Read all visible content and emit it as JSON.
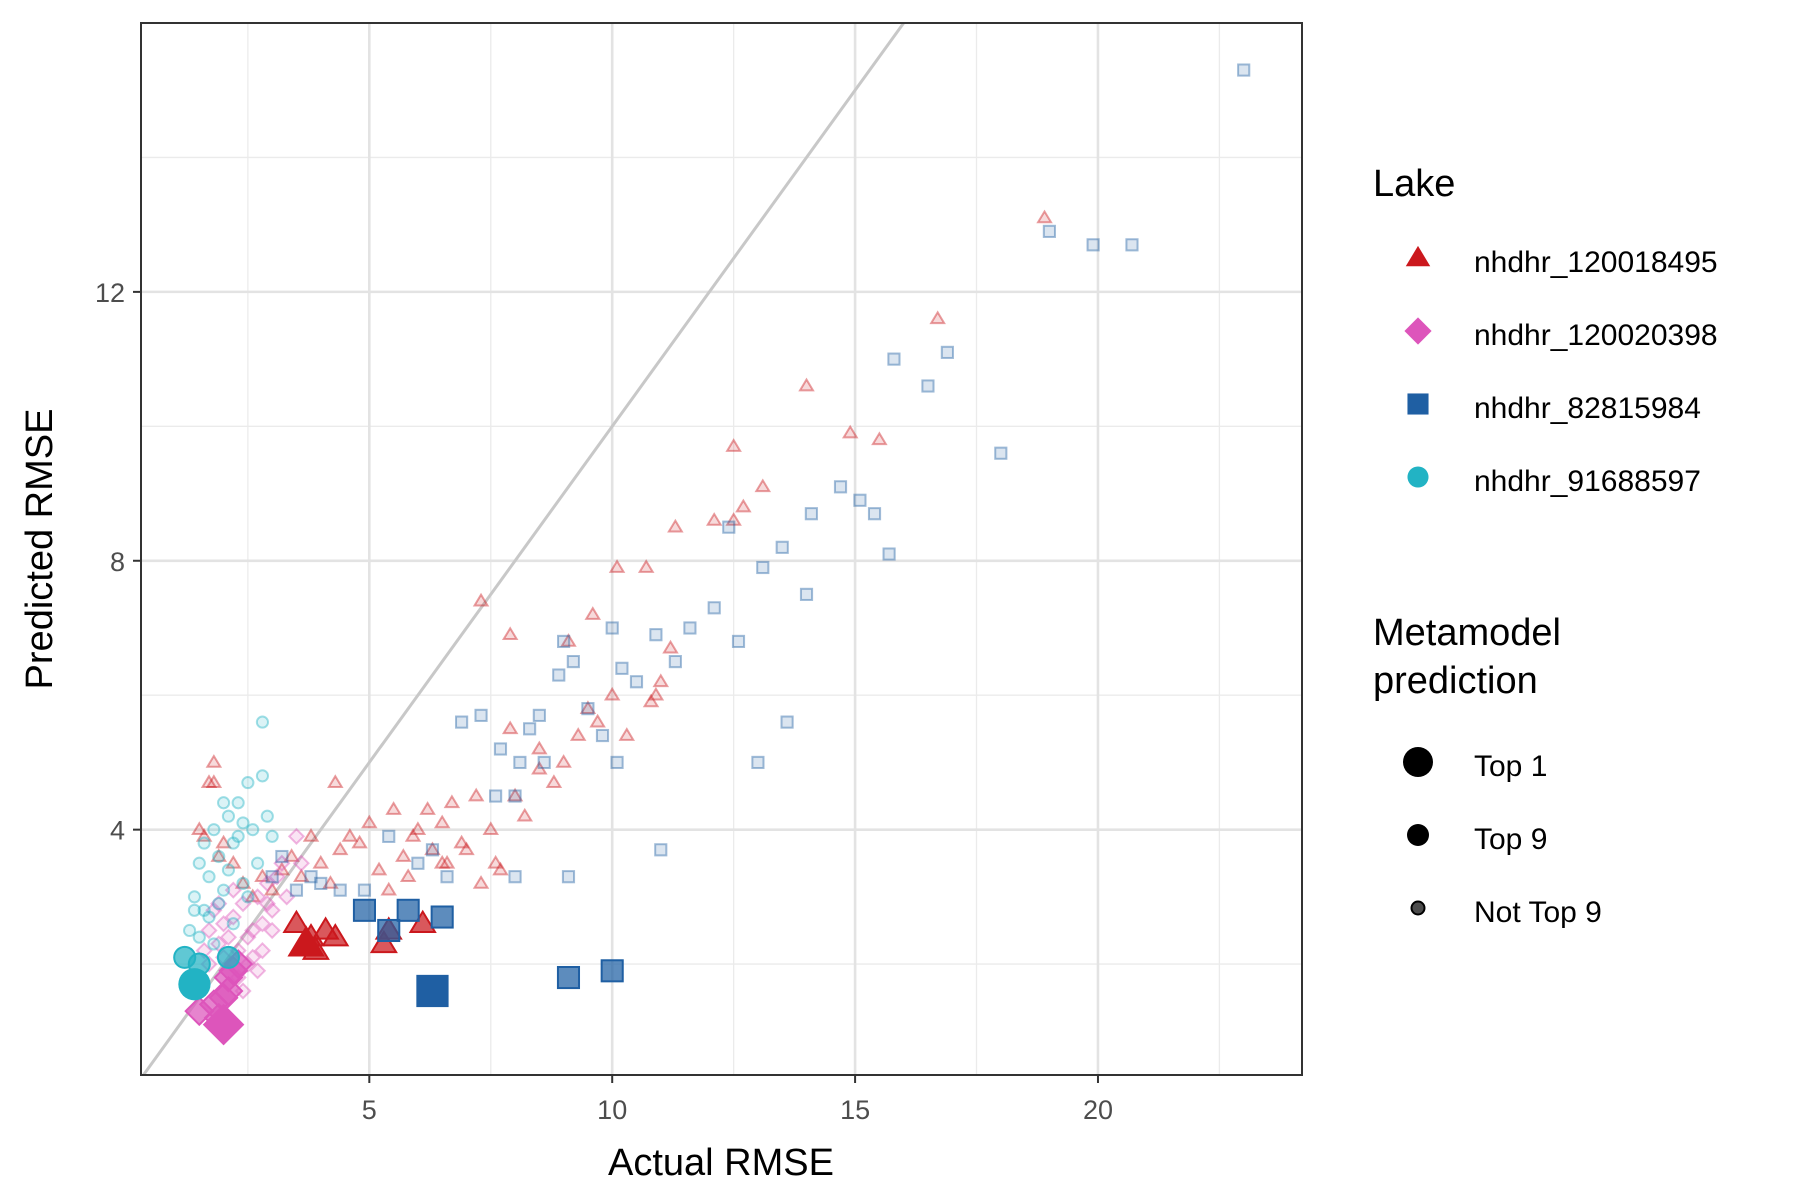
{
  "chart_data": {
    "type": "scatter",
    "xlabel": "Actual RMSE",
    "ylabel": "Predicted RMSE",
    "xlim": [
      0.3,
      24.2
    ],
    "ylim": [
      0.35,
      16.0
    ],
    "x_ticks": [
      5,
      10,
      15,
      20
    ],
    "y_ticks": [
      4,
      8,
      12
    ],
    "grid": true,
    "reference_line": "y = x",
    "colors": {
      "nhdhr_120018495": "#cb181d",
      "nhdhr_120020398": "#dd55bb",
      "nhdhr_82815984": "#1f5fa3",
      "nhdhr_91688597": "#22b3c4",
      "reference_line": "#c8c8c8"
    },
    "legend": {
      "placement": "right",
      "lake_title": "Lake",
      "lakes": [
        {
          "name": "nhdhr_120018495",
          "shape": "triangle"
        },
        {
          "name": "nhdhr_120020398",
          "shape": "diamond"
        },
        {
          "name": "nhdhr_82815984",
          "shape": "square"
        },
        {
          "name": "nhdhr_91688597",
          "shape": "circle"
        }
      ],
      "size_title_lines": [
        "Metamodel",
        "prediction"
      ],
      "sizes": [
        "Top 1",
        "Top 9",
        "Not Top 9"
      ]
    },
    "series": [
      {
        "name": "nhdhr_120018495",
        "top1": [
          [
            3.7,
            2.3
          ]
        ],
        "top9": [
          [
            3.5,
            2.6
          ],
          [
            3.8,
            2.4
          ],
          [
            4.1,
            2.5
          ],
          [
            4.3,
            2.4
          ],
          [
            5.3,
            2.3
          ],
          [
            5.4,
            2.5
          ],
          [
            6.1,
            2.6
          ],
          [
            3.9,
            2.2
          ]
        ],
        "rest": [
          [
            1.5,
            4.0
          ],
          [
            1.6,
            3.9
          ],
          [
            1.7,
            4.7
          ],
          [
            1.8,
            4.7
          ],
          [
            1.8,
            5.0
          ],
          [
            1.9,
            3.6
          ],
          [
            2.0,
            3.8
          ],
          [
            2.2,
            3.5
          ],
          [
            2.4,
            3.2
          ],
          [
            2.6,
            3.0
          ],
          [
            2.8,
            3.3
          ],
          [
            3.0,
            3.1
          ],
          [
            3.2,
            3.4
          ],
          [
            3.4,
            3.6
          ],
          [
            3.6,
            3.3
          ],
          [
            3.8,
            3.9
          ],
          [
            4.0,
            3.5
          ],
          [
            4.2,
            3.2
          ],
          [
            4.3,
            4.7
          ],
          [
            4.4,
            3.7
          ],
          [
            4.6,
            3.9
          ],
          [
            4.8,
            3.8
          ],
          [
            5.0,
            4.1
          ],
          [
            5.2,
            3.4
          ],
          [
            5.4,
            3.1
          ],
          [
            5.5,
            4.3
          ],
          [
            5.7,
            3.6
          ],
          [
            5.9,
            3.9
          ],
          [
            6.0,
            4.0
          ],
          [
            6.2,
            4.3
          ],
          [
            6.3,
            3.7
          ],
          [
            6.5,
            4.1
          ],
          [
            6.7,
            4.4
          ],
          [
            6.9,
            3.8
          ],
          [
            7.2,
            4.5
          ],
          [
            7.3,
            3.2
          ],
          [
            7.5,
            4.0
          ],
          [
            7.7,
            3.4
          ],
          [
            8.0,
            4.5
          ],
          [
            8.2,
            4.2
          ],
          [
            8.5,
            4.9
          ],
          [
            8.8,
            4.7
          ],
          [
            9.0,
            5.0
          ],
          [
            9.3,
            5.4
          ],
          [
            9.5,
            5.8
          ],
          [
            9.7,
            5.6
          ],
          [
            10.0,
            6.0
          ],
          [
            10.3,
            5.4
          ],
          [
            10.8,
            5.9
          ],
          [
            10.9,
            6.0
          ],
          [
            11.0,
            6.2
          ],
          [
            11.2,
            6.7
          ],
          [
            7.3,
            7.4
          ],
          [
            7.9,
            6.9
          ],
          [
            9.1,
            6.8
          ],
          [
            9.6,
            7.2
          ],
          [
            10.1,
            7.9
          ],
          [
            10.7,
            7.9
          ],
          [
            11.3,
            8.5
          ],
          [
            12.1,
            8.6
          ],
          [
            12.5,
            8.6
          ],
          [
            12.7,
            8.8
          ],
          [
            13.1,
            9.1
          ],
          [
            12.5,
            9.7
          ],
          [
            14.0,
            10.6
          ],
          [
            14.9,
            9.9
          ],
          [
            15.5,
            9.8
          ],
          [
            16.7,
            11.6
          ],
          [
            18.9,
            13.1
          ],
          [
            6.6,
            3.5
          ],
          [
            7.6,
            3.5
          ],
          [
            8.5,
            5.2
          ],
          [
            6.5,
            3.5
          ],
          [
            5.8,
            3.3
          ],
          [
            7.0,
            3.7
          ],
          [
            7.9,
            5.5
          ]
        ]
      },
      {
        "name": "nhdhr_120020398",
        "top1": [
          [
            2.0,
            1.1
          ]
        ],
        "top9": [
          [
            1.5,
            1.3
          ],
          [
            1.8,
            1.4
          ],
          [
            2.0,
            1.5
          ],
          [
            2.1,
            1.6
          ],
          [
            2.2,
            1.9
          ],
          [
            2.3,
            2.0
          ],
          [
            1.9,
            1.2
          ],
          [
            2.1,
            1.8
          ]
        ],
        "rest": [
          [
            1.6,
            2.2
          ],
          [
            1.7,
            2.5
          ],
          [
            1.8,
            2.8
          ],
          [
            1.9,
            2.3
          ],
          [
            2.0,
            2.6
          ],
          [
            2.1,
            2.4
          ],
          [
            2.2,
            2.7
          ],
          [
            2.3,
            2.2
          ],
          [
            2.4,
            2.9
          ],
          [
            2.5,
            2.4
          ],
          [
            2.6,
            2.1
          ],
          [
            2.7,
            3.0
          ],
          [
            2.8,
            2.6
          ],
          [
            2.9,
            3.2
          ],
          [
            3.0,
            2.8
          ],
          [
            3.1,
            3.3
          ],
          [
            3.2,
            3.5
          ],
          [
            3.3,
            3.0
          ],
          [
            3.5,
            3.9
          ],
          [
            3.6,
            3.5
          ],
          [
            2.2,
            3.1
          ],
          [
            1.9,
            2.9
          ],
          [
            2.5,
            2.0
          ],
          [
            2.3,
            1.8
          ],
          [
            2.6,
            2.5
          ],
          [
            2.8,
            2.2
          ],
          [
            3.0,
            2.5
          ],
          [
            2.4,
            1.6
          ],
          [
            2.7,
            1.9
          ],
          [
            1.7,
            2.0
          ],
          [
            2.0,
            2.1
          ],
          [
            2.9,
            2.9
          ]
        ]
      },
      {
        "name": "nhdhr_82815984",
        "top1": [
          [
            6.3,
            1.6
          ]
        ],
        "top9": [
          [
            4.9,
            2.8
          ],
          [
            5.4,
            2.5
          ],
          [
            5.8,
            2.8
          ],
          [
            6.5,
            2.7
          ],
          [
            9.1,
            1.8
          ],
          [
            10.0,
            1.9
          ]
        ],
        "rest": [
          [
            3.0,
            3.3
          ],
          [
            3.2,
            3.6
          ],
          [
            3.5,
            3.1
          ],
          [
            3.8,
            3.3
          ],
          [
            4.0,
            3.2
          ],
          [
            4.4,
            3.1
          ],
          [
            4.9,
            3.1
          ],
          [
            5.4,
            3.9
          ],
          [
            6.0,
            3.5
          ],
          [
            6.3,
            3.7
          ],
          [
            6.6,
            3.3
          ],
          [
            6.9,
            5.6
          ],
          [
            7.3,
            5.7
          ],
          [
            7.7,
            5.2
          ],
          [
            8.1,
            5.0
          ],
          [
            8.3,
            5.5
          ],
          [
            8.6,
            5.0
          ],
          [
            8.9,
            6.3
          ],
          [
            9.2,
            6.5
          ],
          [
            9.5,
            5.8
          ],
          [
            9.8,
            5.4
          ],
          [
            10.2,
            6.4
          ],
          [
            10.5,
            6.2
          ],
          [
            10.9,
            6.9
          ],
          [
            11.3,
            6.5
          ],
          [
            11.6,
            7.0
          ],
          [
            12.1,
            7.3
          ],
          [
            12.6,
            6.8
          ],
          [
            13.1,
            7.9
          ],
          [
            13.5,
            8.2
          ],
          [
            14.1,
            8.7
          ],
          [
            14.7,
            9.1
          ],
          [
            15.1,
            8.9
          ],
          [
            15.4,
            8.7
          ],
          [
            15.7,
            8.1
          ],
          [
            16.5,
            10.6
          ],
          [
            16.9,
            11.1
          ],
          [
            18.0,
            9.6
          ],
          [
            19.0,
            12.9
          ],
          [
            19.9,
            12.7
          ],
          [
            20.7,
            12.7
          ],
          [
            23.0,
            15.3
          ],
          [
            10.0,
            7.0
          ],
          [
            9.0,
            6.8
          ],
          [
            8.5,
            5.7
          ],
          [
            7.6,
            4.5
          ],
          [
            8.0,
            4.5
          ],
          [
            11.0,
            3.7
          ],
          [
            8.0,
            3.3
          ],
          [
            9.1,
            3.3
          ],
          [
            13.0,
            5.0
          ],
          [
            13.6,
            5.6
          ],
          [
            10.1,
            5.0
          ],
          [
            12.4,
            8.5
          ],
          [
            14.0,
            7.5
          ],
          [
            15.8,
            11.0
          ]
        ]
      },
      {
        "name": "nhdhr_91688597",
        "top1": [
          [
            1.4,
            1.7
          ]
        ],
        "top9": [
          [
            1.2,
            2.1
          ],
          [
            1.5,
            2.0
          ],
          [
            2.1,
            2.1
          ]
        ],
        "rest": [
          [
            1.3,
            2.5
          ],
          [
            1.4,
            3.0
          ],
          [
            1.5,
            3.5
          ],
          [
            1.6,
            2.8
          ],
          [
            1.7,
            3.3
          ],
          [
            1.8,
            4.0
          ],
          [
            1.9,
            3.6
          ],
          [
            2.0,
            3.1
          ],
          [
            2.1,
            4.2
          ],
          [
            2.2,
            3.8
          ],
          [
            2.3,
            4.4
          ],
          [
            2.4,
            3.2
          ],
          [
            2.5,
            4.7
          ],
          [
            2.6,
            4.0
          ],
          [
            2.7,
            3.5
          ],
          [
            2.8,
            4.8
          ],
          [
            2.9,
            4.2
          ],
          [
            2.8,
            5.6
          ],
          [
            1.5,
            2.4
          ],
          [
            1.7,
            2.7
          ],
          [
            1.9,
            2.9
          ],
          [
            2.1,
            3.4
          ],
          [
            2.3,
            3.9
          ],
          [
            1.6,
            3.8
          ],
          [
            2.0,
            4.4
          ],
          [
            2.2,
            2.6
          ],
          [
            2.5,
            3.0
          ],
          [
            1.8,
            2.3
          ],
          [
            2.4,
            4.1
          ],
          [
            1.4,
            2.8
          ],
          [
            3.0,
            3.9
          ]
        ]
      }
    ]
  }
}
